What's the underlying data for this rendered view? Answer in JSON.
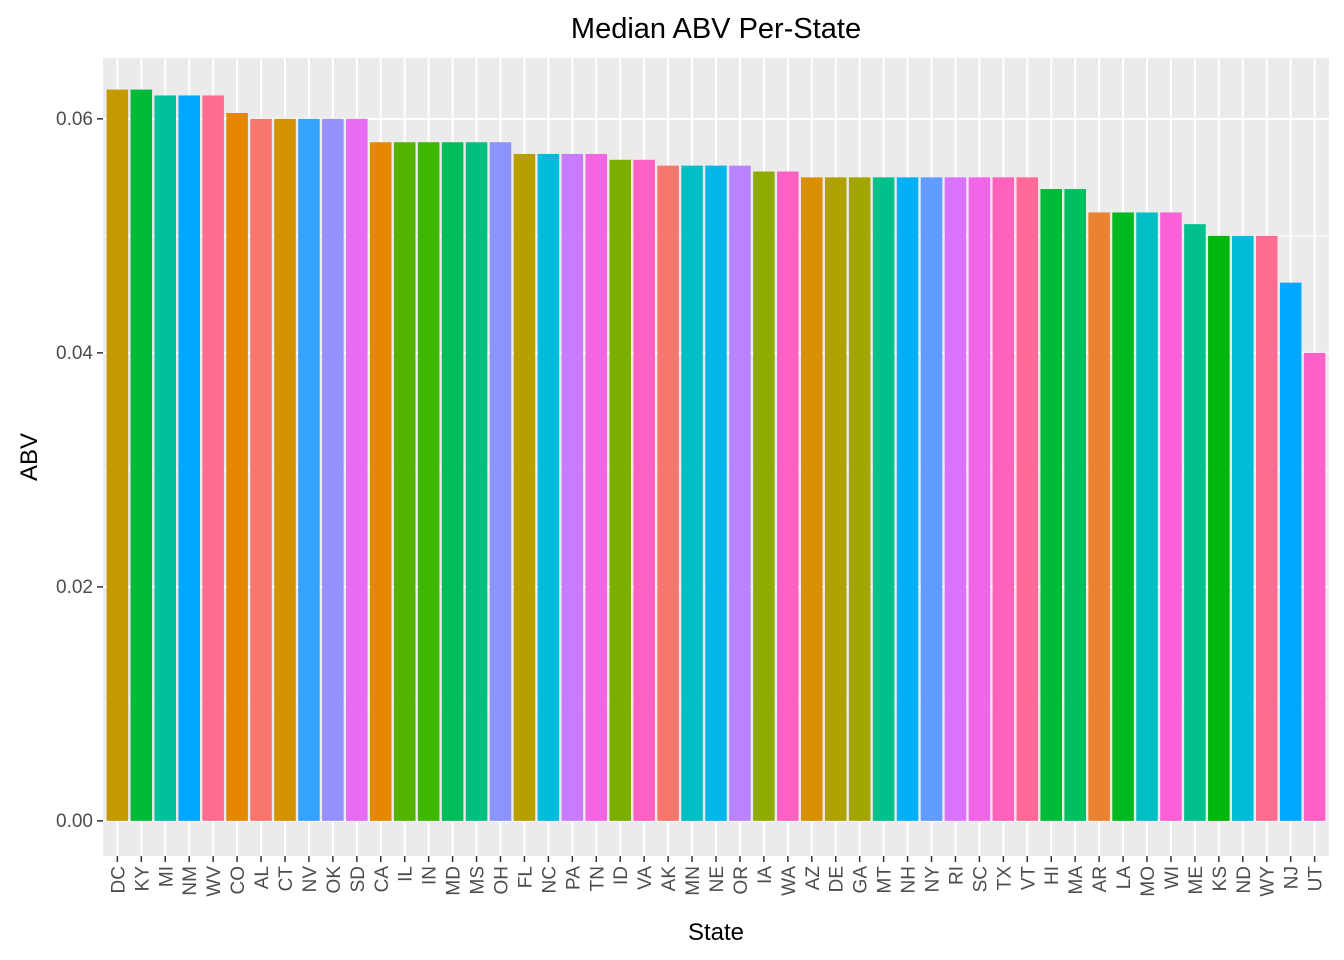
{
  "chart_data": {
    "type": "bar",
    "title": "Median ABV Per-State",
    "xlabel": "State",
    "ylabel": "ABV",
    "ylim": [
      -0.003,
      0.0652
    ],
    "yticks": [
      0.0,
      0.02,
      0.04,
      0.06
    ],
    "ytick_labels": [
      "0.00",
      "0.02",
      "0.04",
      "0.06"
    ],
    "grid": true,
    "legend": "none",
    "categories": [
      "DC",
      "KY",
      "MI",
      "NM",
      "WV",
      "CO",
      "AL",
      "CT",
      "NV",
      "OK",
      "SD",
      "CA",
      "IL",
      "IN",
      "MD",
      "MS",
      "OH",
      "FL",
      "NC",
      "PA",
      "TN",
      "ID",
      "VA",
      "AK",
      "MN",
      "NE",
      "OR",
      "IA",
      "WA",
      "AZ",
      "DE",
      "GA",
      "MT",
      "NH",
      "NY",
      "RI",
      "SC",
      "TX",
      "VT",
      "HI",
      "MA",
      "AR",
      "LA",
      "MO",
      "WI",
      "ME",
      "KS",
      "ND",
      "WY",
      "NJ",
      "UT"
    ],
    "values": [
      0.0625,
      0.0625,
      0.062,
      0.062,
      0.062,
      0.0605,
      0.06,
      0.06,
      0.06,
      0.06,
      0.06,
      0.058,
      0.058,
      0.058,
      0.058,
      0.058,
      0.058,
      0.057,
      0.057,
      0.057,
      0.057,
      0.0565,
      0.0565,
      0.056,
      0.056,
      0.056,
      0.056,
      0.0555,
      0.0555,
      0.055,
      0.055,
      0.055,
      0.055,
      0.055,
      0.055,
      0.055,
      0.055,
      0.055,
      0.055,
      0.054,
      0.054,
      0.052,
      0.052,
      0.052,
      0.052,
      0.051,
      0.05,
      0.05,
      0.05,
      0.046,
      0.04
    ],
    "colors": [
      "#C49A00",
      "#00BA38",
      "#00C19A",
      "#00A9FF",
      "#FF6C91",
      "#E58700",
      "#F8766D",
      "#D39200",
      "#35A2FF",
      "#9590FF",
      "#E76BF3",
      "#E58700",
      "#53B400",
      "#3DB700",
      "#00BC59",
      "#00BF7D",
      "#8B93FF",
      "#B79F00",
      "#00BBDB",
      "#C77CFF",
      "#F564E3",
      "#7CAE00",
      "#FF61C3",
      "#F8766D",
      "#00BFC4",
      "#00B6EB",
      "#B983FF",
      "#8EAB00",
      "#FF61C3",
      "#D89000",
      "#AFA100",
      "#A3A500",
      "#00C08B",
      "#00B0F6",
      "#619CFF",
      "#DB72FB",
      "#F166E8",
      "#FF62BC",
      "#FF6A98",
      "#00BA38",
      "#00BD5F",
      "#EA8331",
      "#00B81F",
      "#00BFC4",
      "#FB61D7",
      "#00C08D",
      "#00B70C",
      "#00BCD8",
      "#FF6C91",
      "#00A9FF",
      "#FF61C9"
    ]
  }
}
